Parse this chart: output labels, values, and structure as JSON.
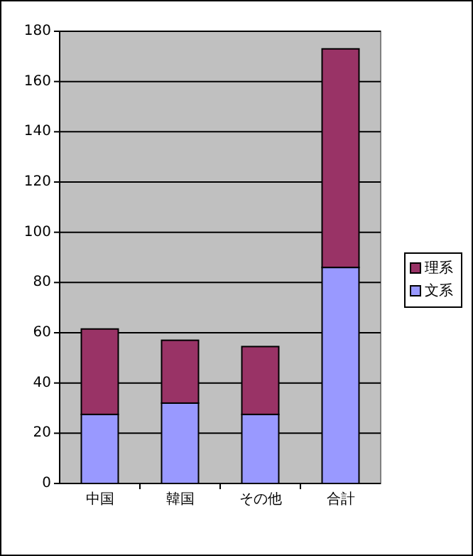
{
  "chart_data": {
    "type": "bar",
    "stacked": true,
    "categories": [
      "中国",
      "韓国",
      "その他",
      "合計"
    ],
    "series": [
      {
        "name": "文系",
        "color": "#9999ff",
        "values": [
          27.5,
          32,
          27.5,
          86
        ]
      },
      {
        "name": "理系",
        "color": "#993366",
        "values": [
          34,
          25,
          27,
          87
        ]
      }
    ],
    "ylim": [
      0,
      180
    ],
    "yticks": [
      0,
      20,
      40,
      60,
      80,
      100,
      120,
      140,
      160,
      180
    ],
    "grid": "y",
    "legend": "right"
  }
}
